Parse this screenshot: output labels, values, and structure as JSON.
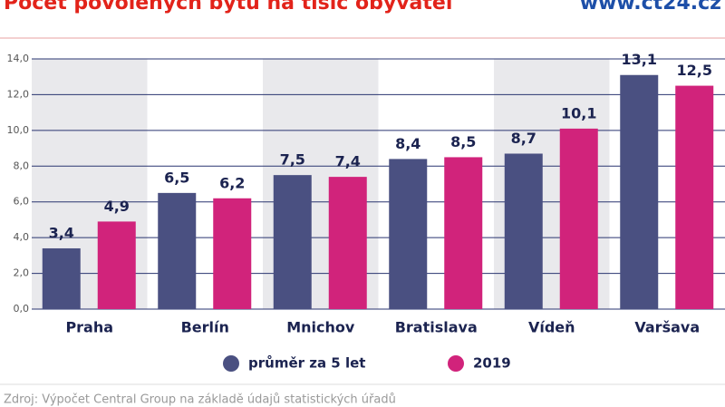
{
  "chart_data": {
    "type": "bar",
    "title": "Počet povolených bytů na tisíc obyvatel",
    "source_url": "www.ct24.cz",
    "footer": "Zdroj: Výpočet Central Group na základě údajů statistických úřadů",
    "categories": [
      "Praha",
      "Berlín",
      "Mnichov",
      "Bratislava",
      "Vídeň",
      "Varšava"
    ],
    "series": [
      {
        "name": "průměr za 5 let",
        "color": "#4a5081",
        "values": [
          3.4,
          6.5,
          7.5,
          8.4,
          8.7,
          13.1
        ],
        "value_labels": [
          "3,4",
          "6,5",
          "7,5",
          "8,4",
          "8,7",
          "13,1"
        ]
      },
      {
        "name": "2019",
        "color": "#d1237b",
        "values": [
          4.9,
          6.2,
          7.4,
          8.5,
          10.1,
          12.5
        ],
        "value_labels": [
          "4,9",
          "6,2",
          "7,4",
          "8,5",
          "10,1",
          "12,5"
        ]
      }
    ],
    "ylim": [
      0,
      14
    ],
    "yticks": [
      {
        "value": 0,
        "label": "0,0"
      },
      {
        "value": 2,
        "label": "2,0"
      },
      {
        "value": 4,
        "label": "4,0"
      },
      {
        "value": 6,
        "label": "6,0"
      },
      {
        "value": 8,
        "label": "8,0"
      },
      {
        "value": 10,
        "label": "10,0"
      },
      {
        "value": 12,
        "label": "12,0"
      },
      {
        "value": 14,
        "label": "14,0"
      }
    ],
    "grid": true
  }
}
